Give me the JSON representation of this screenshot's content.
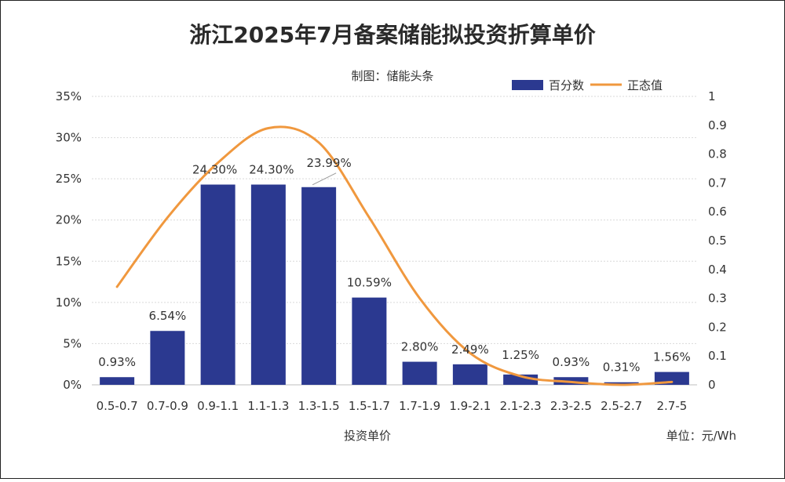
{
  "chart_data": {
    "type": "bar",
    "title": "浙江2025年7月备案储能拟投资折算单价",
    "subtitle": "制图：储能头条",
    "xlabel": "投资单价",
    "unit_note": "单位：元/Wh",
    "categories": [
      "0.5-0.7",
      "0.7-0.9",
      "0.9-1.1",
      "1.1-1.3",
      "1.3-1.5",
      "1.5-1.7",
      "1.7-1.9",
      "1.9-2.1",
      "2.1-2.3",
      "2.3-2.5",
      "2.5-2.7",
      "2.7-5"
    ],
    "series": [
      {
        "name": "百分数",
        "type": "bar",
        "axis": "left",
        "color": "#2b3990",
        "values": [
          0.93,
          6.54,
          24.3,
          24.3,
          23.99,
          10.59,
          2.8,
          2.49,
          1.25,
          0.93,
          0.31,
          1.56
        ],
        "data_labels": [
          "0.93%",
          "6.54%",
          "24.30%",
          "24.30%",
          "23.99%",
          "10.59%",
          "2.80%",
          "2.49%",
          "1.25%",
          "0.93%",
          "0.31%",
          "1.56%"
        ]
      },
      {
        "name": "正态值",
        "type": "line",
        "axis": "right",
        "color": "#f0983e",
        "smooth": true,
        "values": [
          0.34,
          0.58,
          0.77,
          0.89,
          0.84,
          0.58,
          0.3,
          0.11,
          0.03,
          0.01,
          0.0,
          0.01
        ]
      }
    ],
    "y_left": {
      "ylim": [
        0,
        35
      ],
      "ticks": [
        0,
        5,
        10,
        15,
        20,
        25,
        30,
        35
      ],
      "tick_labels": [
        "0%",
        "5%",
        "10%",
        "15%",
        "20%",
        "25%",
        "30%",
        "35%"
      ]
    },
    "y_right": {
      "ylim": [
        0,
        1
      ],
      "ticks": [
        0,
        0.1,
        0.2,
        0.3,
        0.4,
        0.5,
        0.6,
        0.7,
        0.8,
        0.9,
        1
      ],
      "tick_labels": [
        "0",
        "0.1",
        "0.2",
        "0.3",
        "0.4",
        "0.5",
        "0.6",
        "0.7",
        "0.8",
        "0.9",
        "1"
      ]
    },
    "grid": true,
    "legend_position": "top-right"
  }
}
